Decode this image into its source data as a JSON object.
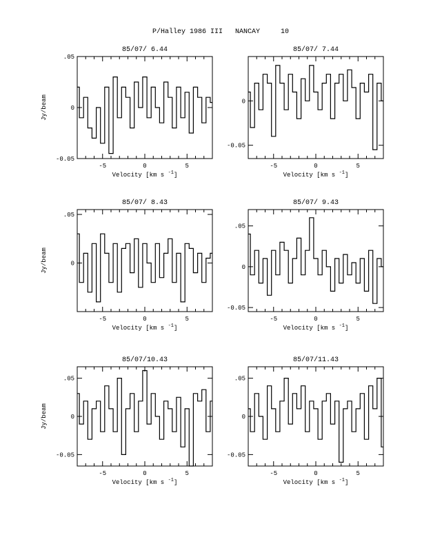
{
  "page": {
    "title": "P/Halley 1986 III   NANCAY     10"
  },
  "chart_data": [
    {
      "type": "line",
      "title": "85/07/ 6.44",
      "xlabel": "Velocity [km s",
      "xlabel_sup": "-1",
      "xlabel_end": "]",
      "ylabel": "Jy/beam",
      "xlim": [
        -8,
        8
      ],
      "ylim": [
        -0.05,
        0.05
      ],
      "xticks": [
        -5,
        0,
        5
      ],
      "yticks": [
        -0.05,
        0,
        0.05
      ],
      "x": [
        -8,
        -7.5,
        -7,
        -6.5,
        -6,
        -5.5,
        -5,
        -4.5,
        -4,
        -3.5,
        -3,
        -2.5,
        -2,
        -1.5,
        -1,
        -0.5,
        0,
        0.5,
        1,
        1.5,
        2,
        2.5,
        3,
        3.5,
        4,
        4.5,
        5,
        5.5,
        6,
        6.5,
        7,
        7.5,
        8
      ],
      "y": [
        0.02,
        -0.01,
        0.01,
        -0.02,
        -0.03,
        0,
        -0.035,
        0.02,
        -0.045,
        0.03,
        -0.01,
        0.02,
        0.01,
        -0.02,
        0.025,
        0,
        0.03,
        -0.01,
        0.02,
        0,
        -0.015,
        0.025,
        0.01,
        -0.02,
        0.02,
        -0.01,
        0.015,
        -0.025,
        0.02,
        0.01,
        -0.015,
        0.01,
        0.005
      ]
    },
    {
      "type": "line",
      "title": "85/07/ 7.44",
      "xlabel": "Velocity [km s",
      "xlabel_sup": "-1",
      "xlabel_end": "]",
      "ylabel": "",
      "xlim": [
        -8,
        8
      ],
      "ylim": [
        -0.065,
        0.05
      ],
      "xticks": [
        -5,
        0,
        5
      ],
      "yticks": [
        -0.05,
        0
      ],
      "x": [
        -8,
        -7.5,
        -7,
        -6.5,
        -6,
        -5.5,
        -5,
        -4.5,
        -4,
        -3.5,
        -3,
        -2.5,
        -2,
        -1.5,
        -1,
        -0.5,
        0,
        0.5,
        1,
        1.5,
        2,
        2.5,
        3,
        3.5,
        4,
        4.5,
        5,
        5.5,
        6,
        6.5,
        7,
        7.5,
        8
      ],
      "y": [
        0.01,
        -0.03,
        0.02,
        -0.01,
        0.03,
        0.02,
        -0.04,
        0.04,
        0.02,
        -0.01,
        0.03,
        0.01,
        -0.02,
        0.025,
        0,
        0.04,
        0.01,
        -0.01,
        0.02,
        0.03,
        -0.02,
        0.02,
        0.03,
        0,
        0.035,
        0.015,
        -0.02,
        0.02,
        0.01,
        0.03,
        -0.055,
        0.02,
        0
      ]
    },
    {
      "type": "line",
      "title": "85/07/ 8.43",
      "xlabel": "Velocity [km s",
      "xlabel_sup": "-1",
      "xlabel_end": "]",
      "ylabel": "Jy/beam",
      "xlim": [
        -8,
        8
      ],
      "ylim": [
        -0.05,
        0.055
      ],
      "xticks": [
        -5,
        0,
        5
      ],
      "yticks": [
        0,
        0.05
      ],
      "x": [
        -8,
        -7.5,
        -7,
        -6.5,
        -6,
        -5.5,
        -5,
        -4.5,
        -4,
        -3.5,
        -3,
        -2.5,
        -2,
        -1.5,
        -1,
        -0.5,
        0,
        0.5,
        1,
        1.5,
        2,
        2.5,
        3,
        3.5,
        4,
        4.5,
        5,
        5.5,
        6,
        6.5,
        7,
        7.5,
        8
      ],
      "y": [
        0.03,
        -0.02,
        0.01,
        -0.03,
        0.02,
        -0.04,
        0.03,
        0.01,
        -0.02,
        0.02,
        -0.03,
        0.015,
        0.02,
        -0.01,
        0.025,
        -0.025,
        0.02,
        0,
        -0.02,
        0.02,
        -0.015,
        0.01,
        0.025,
        -0.02,
        0.01,
        -0.04,
        0.02,
        0.015,
        -0.01,
        0.01,
        -0.02,
        0.005,
        0.01
      ]
    },
    {
      "type": "line",
      "title": "85/07/ 9.43",
      "xlabel": "Velocity [km s",
      "xlabel_sup": "-1",
      "xlabel_end": "]",
      "ylabel": "",
      "xlim": [
        -8,
        8
      ],
      "ylim": [
        -0.055,
        0.07
      ],
      "xticks": [
        -5,
        0,
        5
      ],
      "yticks": [
        -0.05,
        0,
        0.05
      ],
      "x": [
        -8,
        -7.5,
        -7,
        -6.5,
        -6,
        -5.5,
        -5,
        -4.5,
        -4,
        -3.5,
        -3,
        -2.5,
        -2,
        -1.5,
        -1,
        -0.5,
        0,
        0.5,
        1,
        1.5,
        2,
        2.5,
        3,
        3.5,
        4,
        4.5,
        5,
        5.5,
        6,
        6.5,
        7,
        7.5,
        8
      ],
      "y": [
        0.04,
        -0.01,
        0.02,
        -0.02,
        0.01,
        -0.035,
        0.02,
        -0.01,
        0.03,
        0.02,
        -0.02,
        0.01,
        0.035,
        -0.01,
        0.02,
        0.06,
        0.01,
        -0.01,
        0.02,
        0,
        -0.03,
        0.01,
        -0.02,
        0.015,
        -0.01,
        0.005,
        -0.02,
        0.01,
        -0.03,
        0.02,
        -0.045,
        0.01,
        0
      ]
    },
    {
      "type": "line",
      "title": "85/07/10.43",
      "xlabel": "Velocity [km s",
      "xlabel_sup": "-1",
      "xlabel_end": "]",
      "ylabel": "Jy/beam",
      "xlim": [
        -8,
        8
      ],
      "ylim": [
        -0.065,
        0.065
      ],
      "xticks": [
        -5,
        0,
        5
      ],
      "yticks": [
        -0.05,
        0,
        0.05
      ],
      "x": [
        -8,
        -7.5,
        -7,
        -6.5,
        -6,
        -5.5,
        -5,
        -4.5,
        -4,
        -3.5,
        -3,
        -2.5,
        -2,
        -1.5,
        -1,
        -0.5,
        0,
        0.5,
        1,
        1.5,
        2,
        2.5,
        3,
        3.5,
        4,
        4.5,
        5,
        5.5,
        6,
        6.5,
        7,
        7.5,
        8
      ],
      "y": [
        0.03,
        -0.01,
        0.02,
        -0.03,
        0.01,
        0.02,
        -0.02,
        0.04,
        0.01,
        -0.02,
        0.05,
        -0.05,
        0.01,
        0.03,
        -0.02,
        0.02,
        0.06,
        -0.01,
        0.03,
        0,
        -0.03,
        0.02,
        0.01,
        -0.02,
        0.025,
        -0.04,
        0.01,
        -0.065,
        0.03,
        0.02,
        0.035,
        -0.02,
        0.02
      ]
    },
    {
      "type": "line",
      "title": "85/07/11.43",
      "xlabel": "Velocity [km s",
      "xlabel_sup": "-1",
      "xlabel_end": "]",
      "ylabel": "",
      "xlim": [
        -8,
        8
      ],
      "ylim": [
        -0.065,
        0.065
      ],
      "xticks": [
        -5,
        0,
        5
      ],
      "yticks": [
        -0.05,
        0,
        0.05
      ],
      "x": [
        -8,
        -7.5,
        -7,
        -6.5,
        -6,
        -5.5,
        -5,
        -4.5,
        -4,
        -3.5,
        -3,
        -2.5,
        -2,
        -1.5,
        -1,
        -0.5,
        0,
        0.5,
        1,
        1.5,
        2,
        2.5,
        3,
        3.5,
        4,
        4.5,
        5,
        5.5,
        6,
        6.5,
        7,
        7.5,
        8
      ],
      "y": [
        0.01,
        -0.02,
        0.03,
        0,
        -0.03,
        0.04,
        0.01,
        -0.02,
        0.02,
        0.05,
        -0.01,
        0.03,
        0.01,
        0.04,
        -0.02,
        0.02,
        0.01,
        -0.03,
        0.02,
        0.03,
        -0.01,
        0.02,
        -0.06,
        0.01,
        0.02,
        -0.02,
        0.01,
        0.03,
        -0.03,
        0.04,
        0.01,
        0.05,
        -0.04
      ]
    }
  ]
}
